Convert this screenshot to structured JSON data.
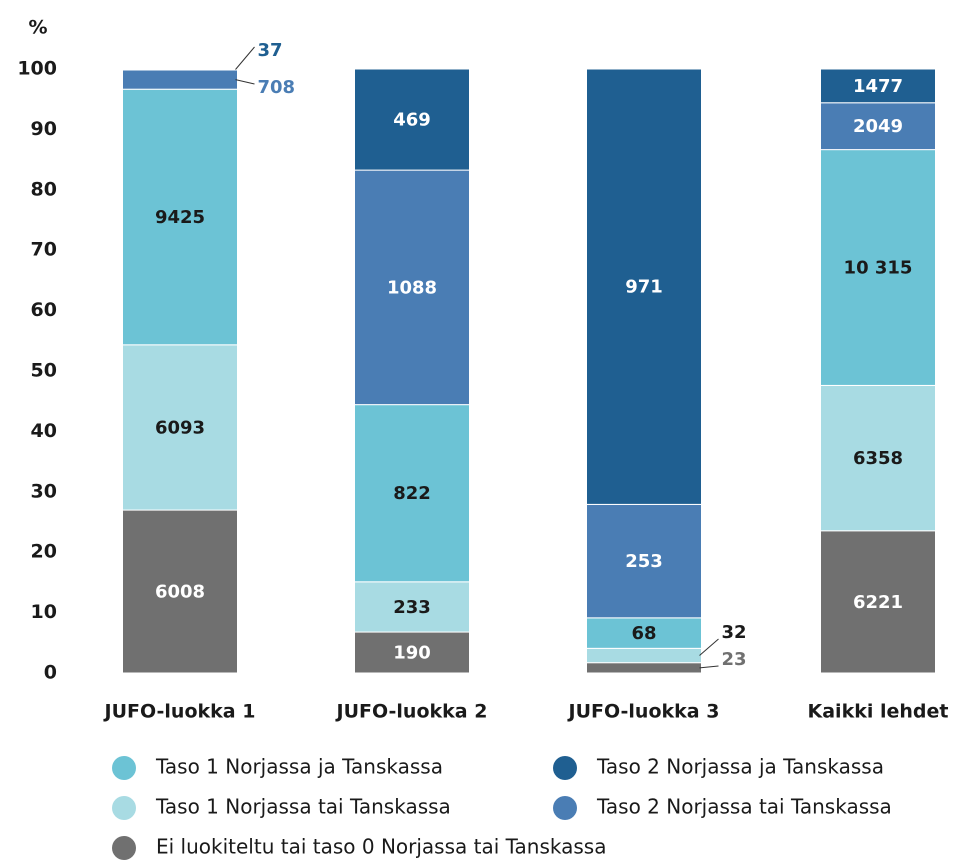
{
  "chart_data": {
    "type": "bar",
    "stack": "percent",
    "y_label": "%",
    "categories": [
      "JUFO-luokka 1",
      "JUFO-luokka 2",
      "JUFO-luokka 3",
      "Kaikki lehdet"
    ],
    "series": [
      {
        "name": "Ei luokiteltu tai taso 0 Norjassa tai Tanskassa",
        "color": "#707070",
        "values": [
          6008,
          190,
          23,
          6221
        ]
      },
      {
        "name": "Taso 1 Norjassa tai Tanskassa",
        "color": "#a8dbe3",
        "values": [
          6093,
          233,
          32,
          6358
        ]
      },
      {
        "name": "Taso 1 Norjassa ja Tanskassa",
        "color": "#6cc3d5",
        "values": [
          9425,
          822,
          68,
          10315
        ],
        "value_labels": [
          "9425",
          "822",
          "68",
          "10 315"
        ]
      },
      {
        "name": "Taso 2 Norjassa tai Tanskassa",
        "color": "#4a7db4",
        "values": [
          708,
          1088,
          253,
          2049
        ]
      },
      {
        "name": "Taso 2 Norjassa ja Tanskassa",
        "color": "#1f5f91",
        "values": [
          37,
          469,
          971,
          1477
        ]
      }
    ],
    "ylim": [
      0,
      100
    ],
    "yticks": [
      0,
      10,
      20,
      30,
      40,
      50,
      60,
      70,
      80,
      90,
      100
    ],
    "grid": false
  }
}
